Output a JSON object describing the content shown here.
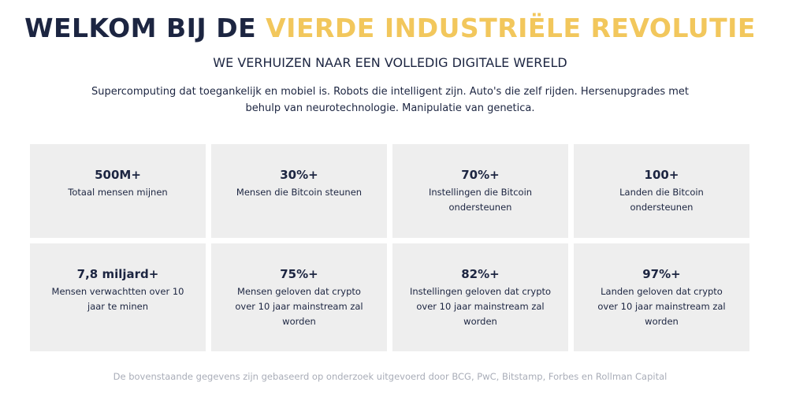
{
  "header": {
    "title_part1": "WELKOM BIJ DE",
    "title_part2": "VIERDE INDUSTRIËLE REVOLUTIE",
    "subtitle": "WE VERHUIZEN NAAR EEN VOLLEDIG DIGITALE WERELD",
    "intro": "Supercomputing dat toegankelijk en mobiel is. Robots die intelligent zijn. Auto's die zelf rijden. Hersenupgrades met behulp van neurotechnologie. Manipulatie van genetica."
  },
  "stats": [
    {
      "value": "500M+",
      "label": "Totaal mensen mijnen"
    },
    {
      "value": "30%+",
      "label": "Mensen die Bitcoin steunen"
    },
    {
      "value": "70%+",
      "label": "Instellingen die Bitcoin ondersteunen"
    },
    {
      "value": "100+",
      "label": "Landen die Bitcoin ondersteunen"
    },
    {
      "value": "7,8 miljard+",
      "label": "Mensen verwachtten over 10 jaar te minen"
    },
    {
      "value": "75%+",
      "label": "Mensen geloven dat crypto over 10 jaar mainstream zal worden"
    },
    {
      "value": "82%+",
      "label": "Instellingen geloven dat crypto over 10 jaar mainstream zal worden"
    },
    {
      "value": "97%+",
      "label": "Landen geloven dat crypto over 10 jaar mainstream zal worden"
    }
  ],
  "footnote": "De bovenstaande gegevens zijn gebaseerd op onderzoek uitgevoerd door BCG, PwC, Bitstamp, Forbes en Rollman Capital"
}
